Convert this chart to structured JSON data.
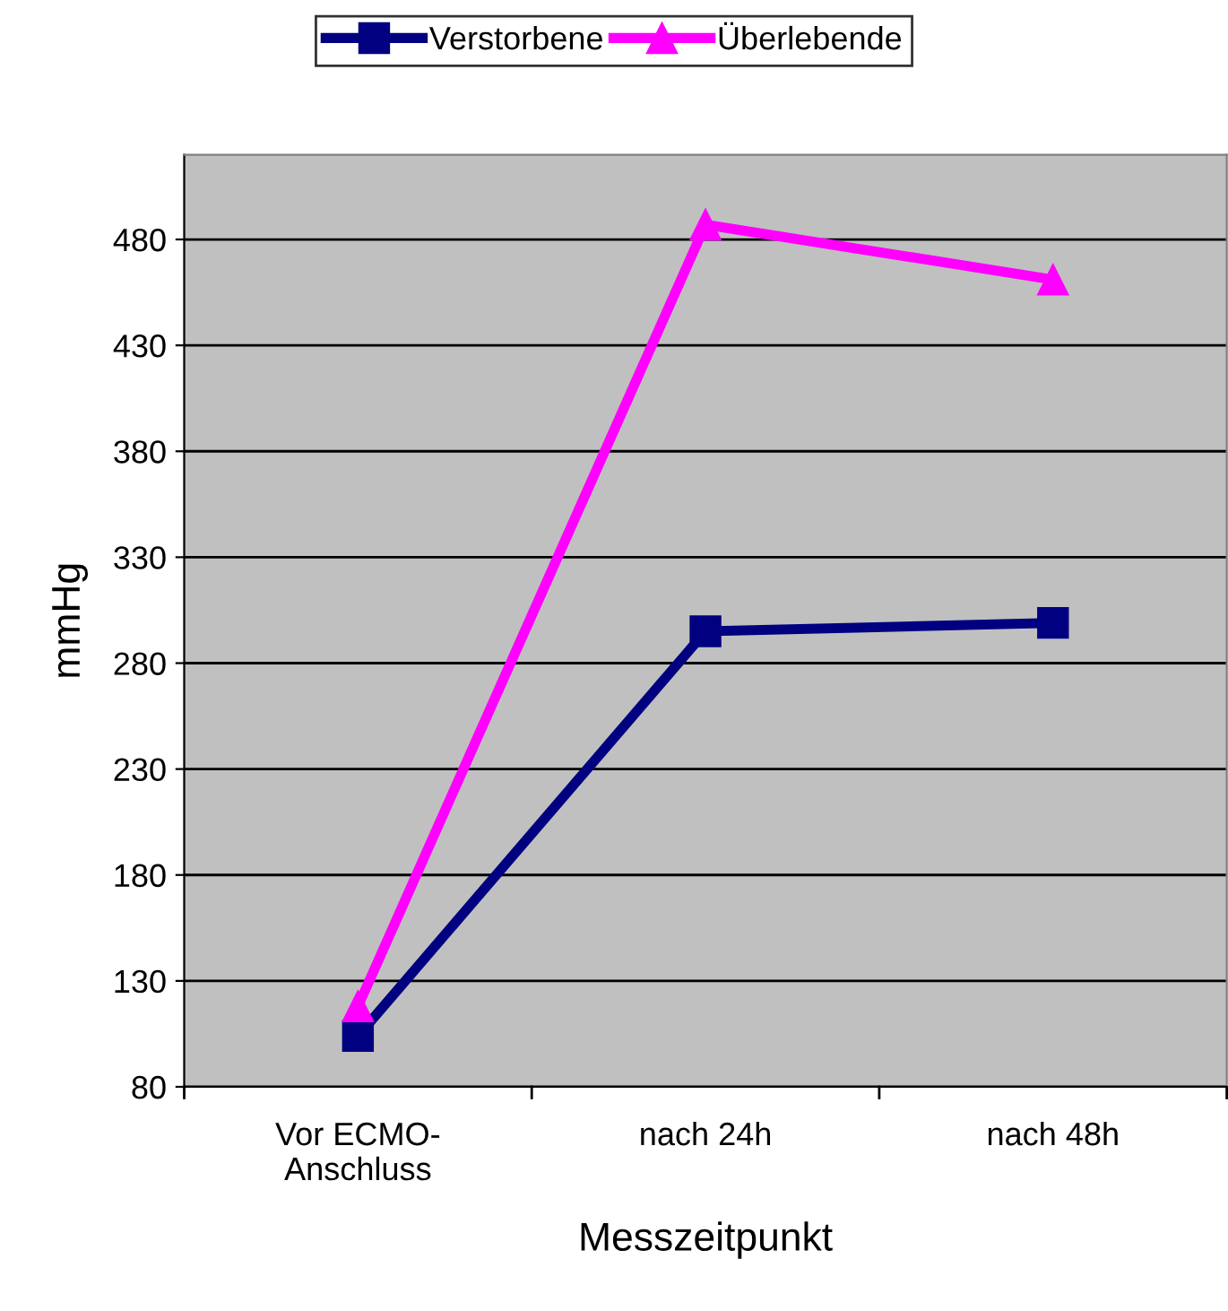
{
  "chart_data": {
    "type": "line",
    "xlabel": "Messzeitpunkt",
    "ylabel": "mmHg",
    "categories": [
      "Vor ECMO-\nAnschluss",
      "nach 24h",
      "nach 48h"
    ],
    "series": [
      {
        "name": "Verstorbene",
        "color": "#000080",
        "values": [
          104,
          295,
          299
        ],
        "marker": "square"
      },
      {
        "name": "Überlebende",
        "color": "#ff00ff",
        "values": [
          118,
          487,
          461
        ],
        "marker": "triangle"
      }
    ],
    "ylim": [
      80,
      520
    ],
    "yticks": [
      80,
      130,
      180,
      230,
      280,
      330,
      380,
      430,
      480
    ],
    "grid": "y",
    "legend": "top",
    "line_style": "solid"
  }
}
